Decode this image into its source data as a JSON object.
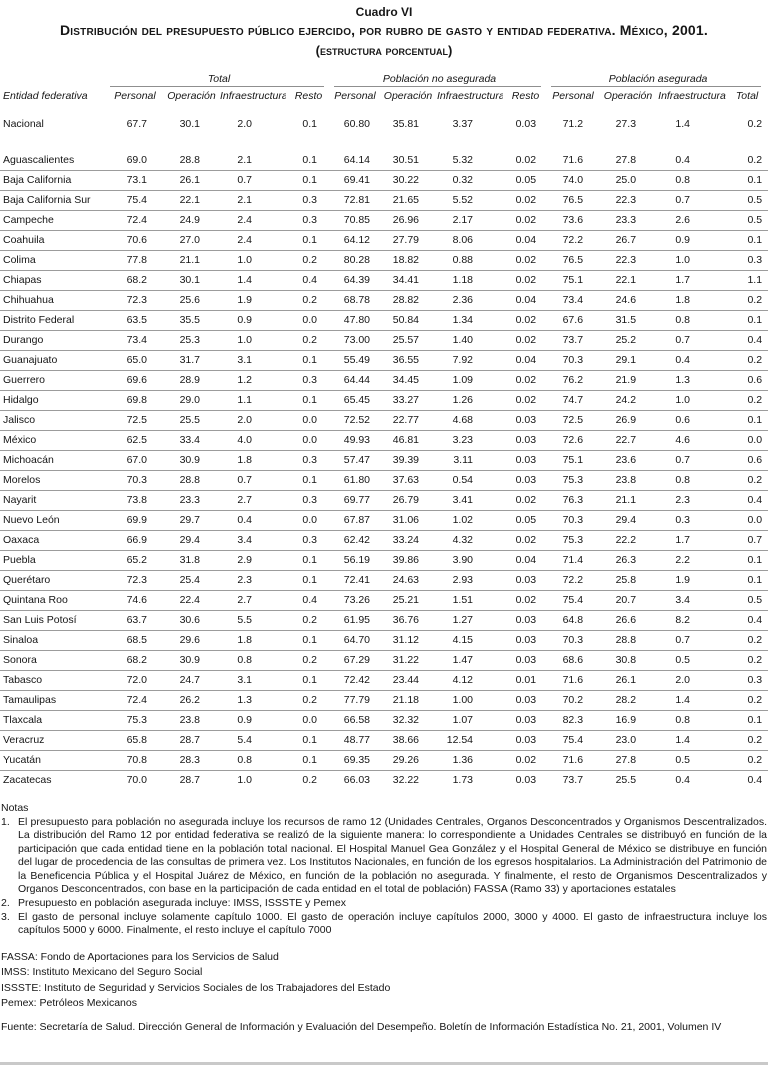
{
  "title": {
    "kicker": "Cuadro VI",
    "line1": "Distribución del presupuesto público ejercido, por rubro de gasto y entidad federativa. México, 2001.",
    "line2": "(estructura porcentual)"
  },
  "table": {
    "row_header": "Entidad federativa",
    "groups": [
      {
        "label": "Total",
        "columns": [
          "Personal",
          "Operación",
          "Infraestructura",
          "Resto"
        ]
      },
      {
        "label": "Población no asegurada",
        "columns": [
          "Personal",
          "Operación",
          "Infraestructura",
          "Resto"
        ]
      },
      {
        "label": "Población asegurada",
        "columns": [
          "Personal",
          "Operación",
          "Infraestructura",
          "Total"
        ]
      }
    ],
    "rows": [
      {
        "entity": "Nacional",
        "values": [
          "67.7",
          "30.1",
          "2.0",
          "0.1",
          "60.80",
          "35.81",
          "3.37",
          "0.03",
          "71.2",
          "27.3",
          "1.4",
          "0.2"
        ]
      },
      {
        "entity": "Aguascalientes",
        "values": [
          "69.0",
          "28.8",
          "2.1",
          "0.1",
          "64.14",
          "30.51",
          "5.32",
          "0.02",
          "71.6",
          "27.8",
          "0.4",
          "0.2"
        ]
      },
      {
        "entity": "Baja California",
        "values": [
          "73.1",
          "26.1",
          "0.7",
          "0.1",
          "69.41",
          "30.22",
          "0.32",
          "0.05",
          "74.0",
          "25.0",
          "0.8",
          "0.1"
        ]
      },
      {
        "entity": "Baja California Sur",
        "values": [
          "75.4",
          "22.1",
          "2.1",
          "0.3",
          "72.81",
          "21.65",
          "5.52",
          "0.02",
          "76.5",
          "22.3",
          "0.7",
          "0.5"
        ]
      },
      {
        "entity": "Campeche",
        "values": [
          "72.4",
          "24.9",
          "2.4",
          "0.3",
          "70.85",
          "26.96",
          "2.17",
          "0.02",
          "73.6",
          "23.3",
          "2.6",
          "0.5"
        ]
      },
      {
        "entity": "Coahuila",
        "values": [
          "70.6",
          "27.0",
          "2.4",
          "0.1",
          "64.12",
          "27.79",
          "8.06",
          "0.04",
          "72.2",
          "26.7",
          "0.9",
          "0.1"
        ]
      },
      {
        "entity": "Colima",
        "values": [
          "77.8",
          "21.1",
          "1.0",
          "0.2",
          "80.28",
          "18.82",
          "0.88",
          "0.02",
          "76.5",
          "22.3",
          "1.0",
          "0.3"
        ]
      },
      {
        "entity": "Chiapas",
        "values": [
          "68.2",
          "30.1",
          "1.4",
          "0.4",
          "64.39",
          "34.41",
          "1.18",
          "0.02",
          "75.1",
          "22.1",
          "1.7",
          "1.1"
        ]
      },
      {
        "entity": "Chihuahua",
        "values": [
          "72.3",
          "25.6",
          "1.9",
          "0.2",
          "68.78",
          "28.82",
          "2.36",
          "0.04",
          "73.4",
          "24.6",
          "1.8",
          "0.2"
        ]
      },
      {
        "entity": "Distrito Federal",
        "values": [
          "63.5",
          "35.5",
          "0.9",
          "0.0",
          "47.80",
          "50.84",
          "1.34",
          "0.02",
          "67.6",
          "31.5",
          "0.8",
          "0.1"
        ]
      },
      {
        "entity": "Durango",
        "values": [
          "73.4",
          "25.3",
          "1.0",
          "0.2",
          "73.00",
          "25.57",
          "1.40",
          "0.02",
          "73.7",
          "25.2",
          "0.7",
          "0.4"
        ]
      },
      {
        "entity": "Guanajuato",
        "values": [
          "65.0",
          "31.7",
          "3.1",
          "0.1",
          "55.49",
          "36.55",
          "7.92",
          "0.04",
          "70.3",
          "29.1",
          "0.4",
          "0.2"
        ]
      },
      {
        "entity": "Guerrero",
        "values": [
          "69.6",
          "28.9",
          "1.2",
          "0.3",
          "64.44",
          "34.45",
          "1.09",
          "0.02",
          "76.2",
          "21.9",
          "1.3",
          "0.6"
        ]
      },
      {
        "entity": "Hidalgo",
        "values": [
          "69.8",
          "29.0",
          "1.1",
          "0.1",
          "65.45",
          "33.27",
          "1.26",
          "0.02",
          "74.7",
          "24.2",
          "1.0",
          "0.2"
        ]
      },
      {
        "entity": "Jalisco",
        "values": [
          "72.5",
          "25.5",
          "2.0",
          "0.0",
          "72.52",
          "22.77",
          "4.68",
          "0.03",
          "72.5",
          "26.9",
          "0.6",
          "0.1"
        ]
      },
      {
        "entity": "México",
        "values": [
          "62.5",
          "33.4",
          "4.0",
          "0.0",
          "49.93",
          "46.81",
          "3.23",
          "0.03",
          "72.6",
          "22.7",
          "4.6",
          "0.0"
        ]
      },
      {
        "entity": "Michoacán",
        "values": [
          "67.0",
          "30.9",
          "1.8",
          "0.3",
          "57.47",
          "39.39",
          "3.11",
          "0.03",
          "75.1",
          "23.6",
          "0.7",
          "0.6"
        ]
      },
      {
        "entity": "Morelos",
        "values": [
          "70.3",
          "28.8",
          "0.7",
          "0.1",
          "61.80",
          "37.63",
          "0.54",
          "0.03",
          "75.3",
          "23.8",
          "0.8",
          "0.2"
        ]
      },
      {
        "entity": "Nayarit",
        "values": [
          "73.8",
          "23.3",
          "2.7",
          "0.3",
          "69.77",
          "26.79",
          "3.41",
          "0.02",
          "76.3",
          "21.1",
          "2.3",
          "0.4"
        ]
      },
      {
        "entity": "Nuevo León",
        "values": [
          "69.9",
          "29.7",
          "0.4",
          "0.0",
          "67.87",
          "31.06",
          "1.02",
          "0.05",
          "70.3",
          "29.4",
          "0.3",
          "0.0"
        ]
      },
      {
        "entity": "Oaxaca",
        "values": [
          "66.9",
          "29.4",
          "3.4",
          "0.3",
          "62.42",
          "33.24",
          "4.32",
          "0.02",
          "75.3",
          "22.2",
          "1.7",
          "0.7"
        ]
      },
      {
        "entity": "Puebla",
        "values": [
          "65.2",
          "31.8",
          "2.9",
          "0.1",
          "56.19",
          "39.86",
          "3.90",
          "0.04",
          "71.4",
          "26.3",
          "2.2",
          "0.1"
        ]
      },
      {
        "entity": "Querétaro",
        "values": [
          "72.3",
          "25.4",
          "2.3",
          "0.1",
          "72.41",
          "24.63",
          "2.93",
          "0.03",
          "72.2",
          "25.8",
          "1.9",
          "0.1"
        ]
      },
      {
        "entity": "Quintana Roo",
        "values": [
          "74.6",
          "22.4",
          "2.7",
          "0.4",
          "73.26",
          "25.21",
          "1.51",
          "0.02",
          "75.4",
          "20.7",
          "3.4",
          "0.5"
        ]
      },
      {
        "entity": "San Luis Potosí",
        "values": [
          "63.7",
          "30.6",
          "5.5",
          "0.2",
          "61.95",
          "36.76",
          "1.27",
          "0.03",
          "64.8",
          "26.6",
          "8.2",
          "0.4"
        ]
      },
      {
        "entity": "Sinaloa",
        "values": [
          "68.5",
          "29.6",
          "1.8",
          "0.1",
          "64.70",
          "31.12",
          "4.15",
          "0.03",
          "70.3",
          "28.8",
          "0.7",
          "0.2"
        ]
      },
      {
        "entity": "Sonora",
        "values": [
          "68.2",
          "30.9",
          "0.8",
          "0.2",
          "67.29",
          "31.22",
          "1.47",
          "0.03",
          "68.6",
          "30.8",
          "0.5",
          "0.2"
        ]
      },
      {
        "entity": "Tabasco",
        "values": [
          "72.0",
          "24.7",
          "3.1",
          "0.1",
          "72.42",
          "23.44",
          "4.12",
          "0.01",
          "71.6",
          "26.1",
          "2.0",
          "0.3"
        ]
      },
      {
        "entity": "Tamaulipas",
        "values": [
          "72.4",
          "26.2",
          "1.3",
          "0.2",
          "77.79",
          "21.18",
          "1.00",
          "0.03",
          "70.2",
          "28.2",
          "1.4",
          "0.2"
        ]
      },
      {
        "entity": "Tlaxcala",
        "values": [
          "75.3",
          "23.8",
          "0.9",
          "0.0",
          "66.58",
          "32.32",
          "1.07",
          "0.03",
          "82.3",
          "16.9",
          "0.8",
          "0.1"
        ]
      },
      {
        "entity": "Veracruz",
        "values": [
          "65.8",
          "28.7",
          "5.4",
          "0.1",
          "48.77",
          "38.66",
          "12.54",
          "0.03",
          "75.4",
          "23.0",
          "1.4",
          "0.2"
        ]
      },
      {
        "entity": "Yucatán",
        "values": [
          "70.8",
          "28.3",
          "0.8",
          "0.1",
          "69.35",
          "29.26",
          "1.36",
          "0.02",
          "71.6",
          "27.8",
          "0.5",
          "0.2"
        ]
      },
      {
        "entity": "Zacatecas",
        "values": [
          "70.0",
          "28.7",
          "1.0",
          "0.2",
          "66.03",
          "32.22",
          "1.73",
          "0.03",
          "73.7",
          "25.5",
          "0.4",
          "0.4"
        ]
      }
    ]
  },
  "notes": {
    "heading": "Notas",
    "items": [
      {
        "num": "1.",
        "text": "El presupuesto para población no asegurada incluye los recursos de ramo 12 (Unidades Centrales, Organos Desconcentrados y Organismos Descentralizados. La distribución del Ramo 12 por entidad federativa se realizó de la siguiente manera: lo correspondiente a Unidades Centrales se distribuyó en función de la participación que cada entidad tiene en la población total nacional. El Hospital Manuel Gea González y el Hospital General de México se distribuye en función del lugar de procedencia de las consultas de primera vez. Los Institutos Nacionales, en función de los egresos hospitalarios. La Administración del Patrimonio de la Beneficencia Pública y el Hospital Juárez de México, en función de la población no asegurada. Y finalmente, el resto de Organismos Descentralizados y Organos Desconcentrados, con base en la participación de cada entidad en el total de población) FASSA (Ramo 33) y aportaciones estatales"
      },
      {
        "num": "2.",
        "text": "Presupuesto en población asegurada incluye: IMSS, ISSSTE y Pemex"
      },
      {
        "num": "3.",
        "text": "El gasto de personal incluye solamente capítulo 1000. El gasto de operación incluye capítulos 2000, 3000 y 4000. El gasto de infraestructura incluye los capítulos 5000 y 6000. Finalmente, el resto incluye el capítulo 7000"
      }
    ]
  },
  "glossary": [
    "FASSA: Fondo de Aportaciones para los Servicios de Salud",
    "IMSS: Instituto Mexicano del Seguro Social",
    "ISSSTE: Instituto de Seguridad y Servicios Sociales de los Trabajadores del Estado",
    "Pemex: Petróleos Mexicanos"
  ],
  "source": "Fuente: Secretaría de Salud. Dirección General de Información y Evaluación del Desempeño. Boletín de Información Estadística No. 21, 2001, Volumen IV"
}
